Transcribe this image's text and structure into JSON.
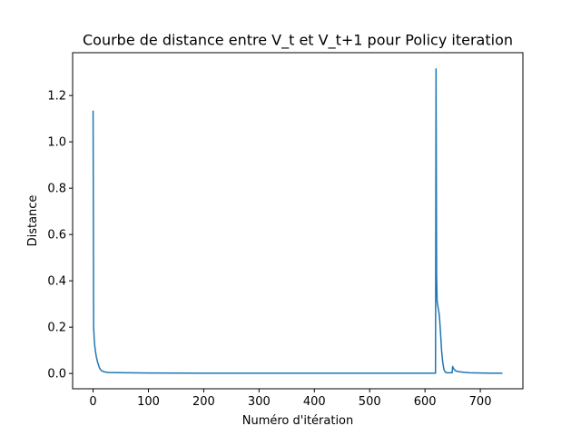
{
  "chart_data": {
    "type": "line",
    "title": "Courbe de distance entre V_t et V_t+1 pour Policy iteration",
    "xlabel": "Numéro d'itération",
    "ylabel": "Distance",
    "xlim": [
      -37,
      777
    ],
    "ylim": [
      -0.066,
      1.385
    ],
    "xticks": [
      0,
      100,
      200,
      300,
      400,
      500,
      600,
      700
    ],
    "yticks": [
      0.0,
      0.2,
      0.4,
      0.6,
      0.8,
      1.0,
      1.2
    ],
    "grid": false,
    "legend": "none",
    "series": [
      {
        "color": "#1f77b4",
        "x": [
          0,
          1,
          2,
          3,
          4,
          5,
          6,
          8,
          10,
          12,
          15,
          20,
          25,
          30,
          40,
          60,
          100,
          200,
          300,
          400,
          500,
          600,
          619,
          620,
          621,
          622,
          624,
          626,
          628,
          630,
          632,
          634,
          636,
          638,
          640,
          645,
          649,
          650,
          652,
          655,
          660,
          670,
          680,
          700,
          720,
          740
        ],
        "y": [
          1.135,
          0.2,
          0.15,
          0.12,
          0.1,
          0.085,
          0.07,
          0.05,
          0.035,
          0.022,
          0.012,
          0.007,
          0.005,
          0.004,
          0.0035,
          0.003,
          0.002,
          0.001,
          0.001,
          0.001,
          0.001,
          0.001,
          0.001,
          1.315,
          0.42,
          0.31,
          0.28,
          0.25,
          0.18,
          0.1,
          0.05,
          0.02,
          0.008,
          0.004,
          0.003,
          0.003,
          0.003,
          0.03,
          0.02,
          0.012,
          0.008,
          0.005,
          0.003,
          0.002,
          0.001,
          0.001
        ]
      }
    ]
  }
}
